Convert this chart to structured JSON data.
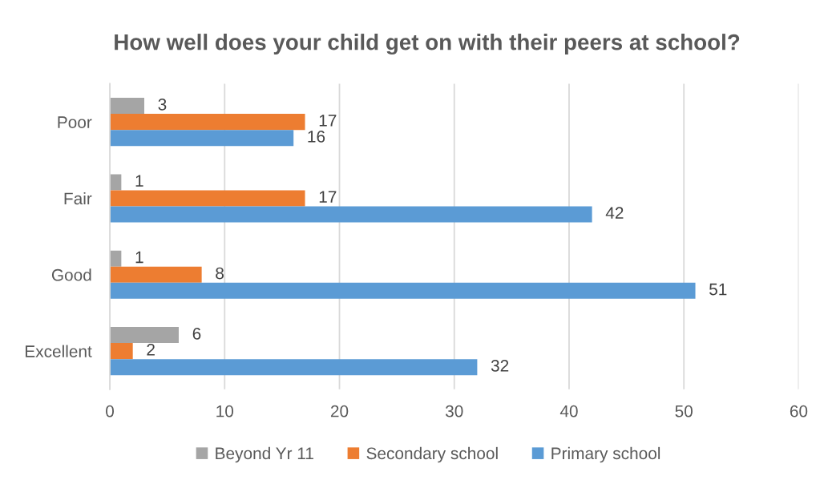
{
  "chart_data": {
    "type": "bar",
    "orientation": "horizontal",
    "title": "How well does your child get on with their peers at school?",
    "categories": [
      "Poor",
      "Fair",
      "Good",
      "Excellent"
    ],
    "series": [
      {
        "name": "Beyond Yr 11",
        "color": "#a5a5a5",
        "values": [
          3,
          1,
          1,
          6
        ]
      },
      {
        "name": "Secondary school",
        "color": "#ed7d31",
        "values": [
          17,
          17,
          8,
          2
        ]
      },
      {
        "name": "Primary school",
        "color": "#5b9bd5",
        "values": [
          16,
          42,
          51,
          32
        ]
      }
    ],
    "xlim": [
      0,
      60
    ],
    "xticks": [
      0,
      10,
      20,
      30,
      40,
      50,
      60
    ],
    "grid": "x",
    "legend": "bottom",
    "data_labels": true
  }
}
